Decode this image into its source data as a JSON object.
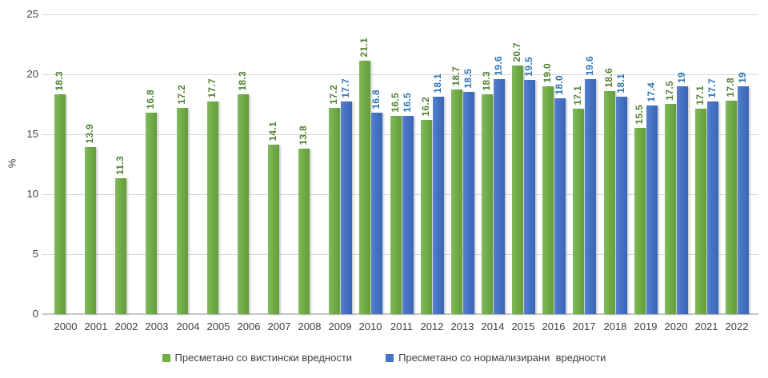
{
  "chart_data": {
    "type": "bar",
    "title": "",
    "xlabel": "",
    "ylabel": "%",
    "ylim": [
      0,
      25
    ],
    "yticks": [
      "0",
      "5",
      "10",
      "15",
      "20",
      "25"
    ],
    "grid": true,
    "legend_position": "bottom",
    "categories": [
      "2000",
      "2001",
      "2002",
      "2003",
      "2004",
      "2005",
      "2006",
      "2007",
      "2008",
      "2009",
      "2010",
      "2011",
      "2012",
      "2013",
      "2014",
      "2015",
      "2016",
      "2017",
      "2018",
      "2019",
      "2020",
      "2021",
      "2022"
    ],
    "series": [
      {
        "name": "Пресметано со вистински вредности",
        "color": "#70AD47",
        "color_light": "#82BA5C",
        "color_dark": "#649C3E",
        "label_color": "#538135",
        "values": [
          18.3,
          13.9,
          11.3,
          16.8,
          17.2,
          17.7,
          18.3,
          14.1,
          13.8,
          17.2,
          21.1,
          16.5,
          16.2,
          18.7,
          18.3,
          20.7,
          19.0,
          17.1,
          18.6,
          15.5,
          17.5,
          17.1,
          17.8
        ],
        "labels": [
          "18.3",
          "13.9",
          "11.3",
          "16.8",
          "17.2",
          "17.7",
          "18.3",
          "14.1",
          "13.8",
          "17.2",
          "21.1",
          "16.5",
          "16.2",
          "18.7",
          "18.3",
          "20.7",
          "19.0",
          "17.1",
          "18.6",
          "15.5",
          "17.5",
          "17.1",
          "17.8"
        ]
      },
      {
        "name": "Пресметано со нормализирани  вредности",
        "color": "#4472C4",
        "color_light": "#5781CE",
        "color_dark": "#3C66B2",
        "label_color": "#2E75B6",
        "values": [
          null,
          null,
          null,
          null,
          null,
          null,
          null,
          null,
          null,
          17.7,
          16.8,
          16.5,
          18.1,
          18.5,
          19.6,
          19.5,
          18.0,
          19.6,
          18.1,
          17.4,
          19,
          17.7,
          19
        ],
        "labels": [
          null,
          null,
          null,
          null,
          null,
          null,
          null,
          null,
          null,
          "17.7",
          "16.8",
          "16.5",
          "18.1",
          "18.5",
          "19.6",
          "19.5",
          "18.0",
          "19.6",
          "18.1",
          "17.4",
          "19",
          "17.7",
          "19"
        ]
      }
    ],
    "colors": {
      "gridline": "#d9d9d9",
      "axis_line": "#c8c8c8",
      "axis_text": "#404040",
      "legend_text": "#404040",
      "background": "#ffffff"
    }
  }
}
